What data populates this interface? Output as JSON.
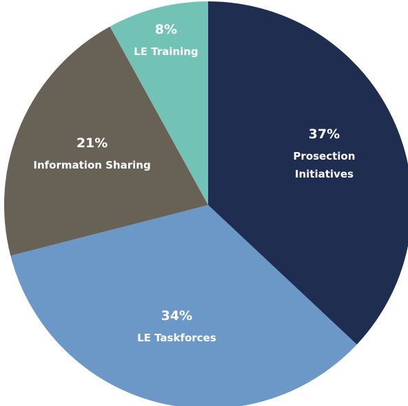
{
  "chart_data": {
    "type": "pie",
    "categories": [
      "Prosection Initiatives",
      "LE Taskforces",
      "Information Sharing",
      "LE Training"
    ],
    "values": [
      37,
      34,
      21,
      8
    ],
    "value_labels": [
      "37%",
      "34%",
      "21%",
      "8%"
    ],
    "colors": [
      "#1f2d50",
      "#6b98c6",
      "#686155",
      "#72c2b5"
    ],
    "start_angle": 0,
    "direction": "clockwise"
  }
}
